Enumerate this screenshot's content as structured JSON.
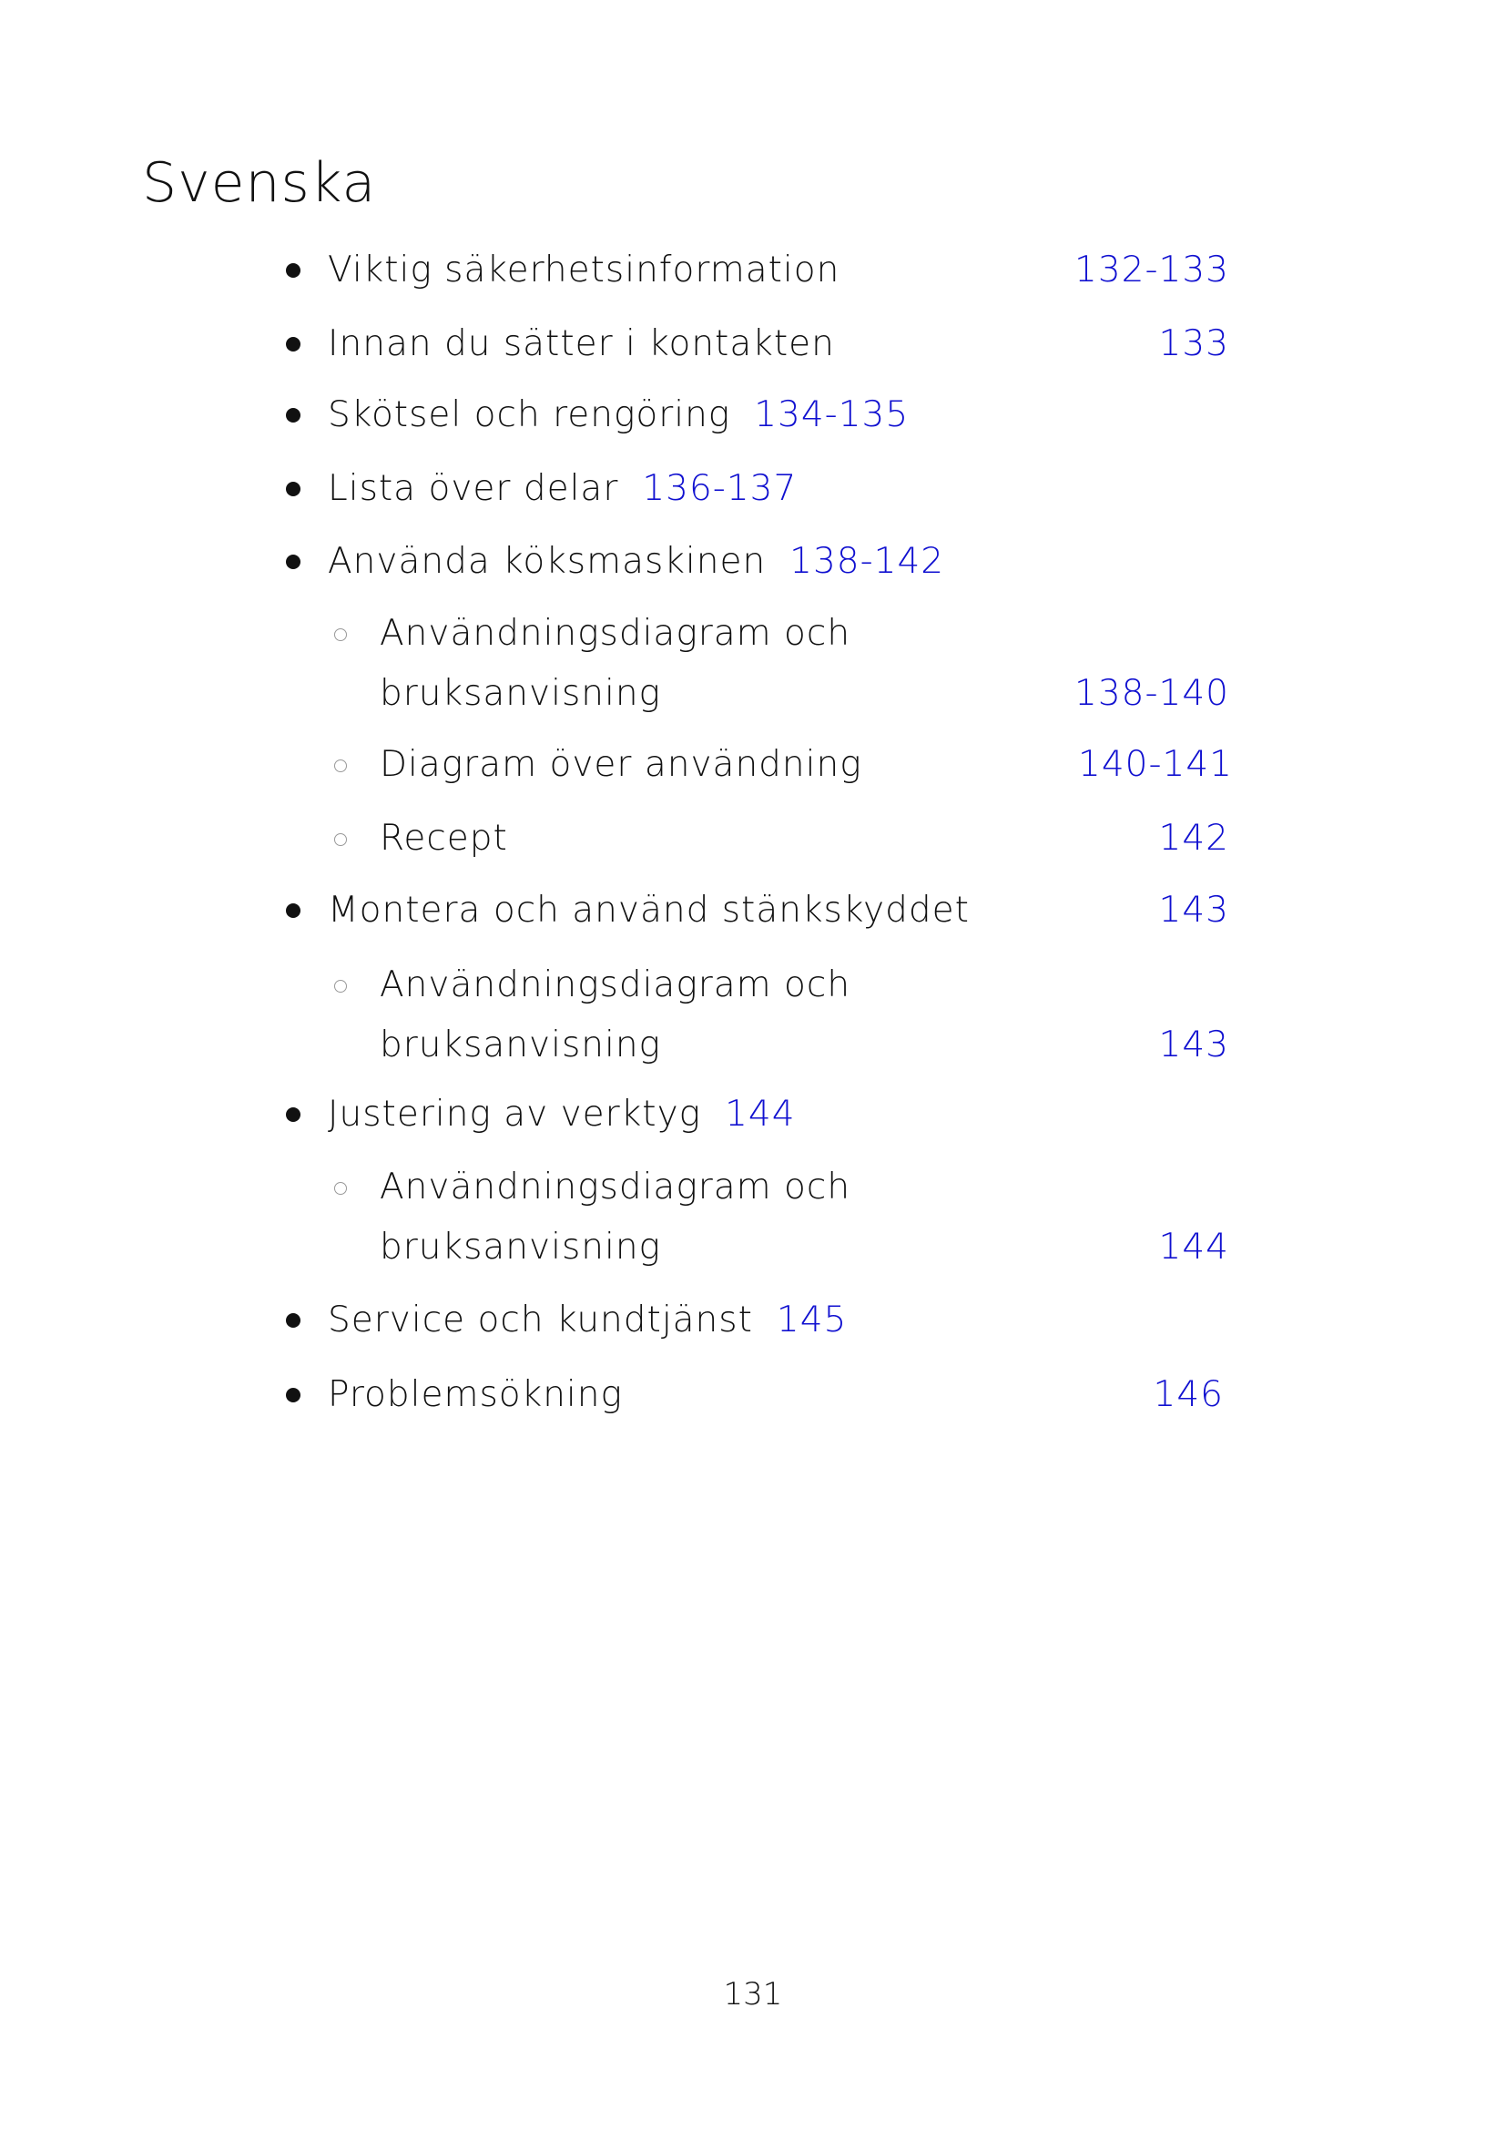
{
  "title": "Svenska",
  "accent_color": "#1010d0",
  "items": [
    {
      "label": "Viktig säkerhetsinformation",
      "pages": "132-133"
    },
    {
      "label": "Innan du sätter i kontakten",
      "pages": "133"
    },
    {
      "label": "Skötsel och rengöring",
      "pages": "134-135"
    },
    {
      "label": "Lista över delar",
      "pages": "136-137"
    },
    {
      "label": "Använda köksmaskinen",
      "pages": "138-142"
    },
    {
      "label": "Användningsdiagram och",
      "label2": "bruksanvisning",
      "pages": "138-140"
    },
    {
      "label": "Diagram över användning",
      "pages": "140-141"
    },
    {
      "label": "Recept",
      "pages": "142"
    },
    {
      "label": "Montera och använd stänkskyddet",
      "pages": "143"
    },
    {
      "label": "Användningsdiagram och",
      "label2": "bruksanvisning",
      "pages": "143"
    },
    {
      "label": "Justering av verktyg",
      "pages": "144"
    },
    {
      "label": "Användningsdiagram och",
      "label2": "bruksanvisning",
      "pages": "144"
    },
    {
      "label": "Service och kundtjänst",
      "pages": "145"
    },
    {
      "label": "Problemsökning",
      "pages": "146"
    }
  ],
  "page_number": "131"
}
